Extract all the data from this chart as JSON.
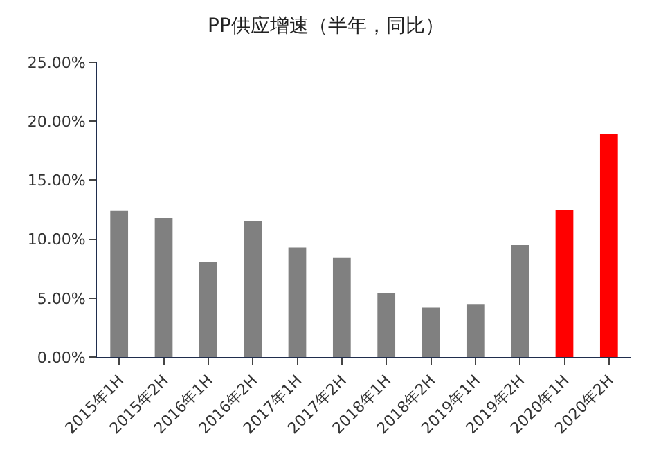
{
  "chart_data": {
    "type": "bar",
    "title": "PP供应增速（半年，同比）",
    "categories": [
      "2015年1H",
      "2015年2H",
      "2016年1H",
      "2016年2H",
      "2017年1H",
      "2017年2H",
      "2018年1H",
      "2018年2H",
      "2019年1H",
      "2019年2H",
      "2020年1H",
      "2020年2H"
    ],
    "values": [
      12.4,
      11.8,
      8.1,
      11.5,
      9.3,
      8.4,
      5.4,
      4.2,
      4.5,
      9.5,
      12.5,
      18.9
    ],
    "yticks": [
      {
        "value": 0,
        "label": "0.00%"
      },
      {
        "value": 5,
        "label": "5.00%"
      },
      {
        "value": 10,
        "label": "10.00%"
      },
      {
        "value": 15,
        "label": "15.00%"
      },
      {
        "value": 20,
        "label": "20.00%"
      },
      {
        "value": 25,
        "label": "25.00%"
      }
    ],
    "colors": [
      "#808080",
      "#808080",
      "#808080",
      "#808080",
      "#808080",
      "#808080",
      "#808080",
      "#808080",
      "#808080",
      "#808080",
      "#ff0000",
      "#ff0000"
    ],
    "ylim": [
      0,
      25
    ]
  }
}
